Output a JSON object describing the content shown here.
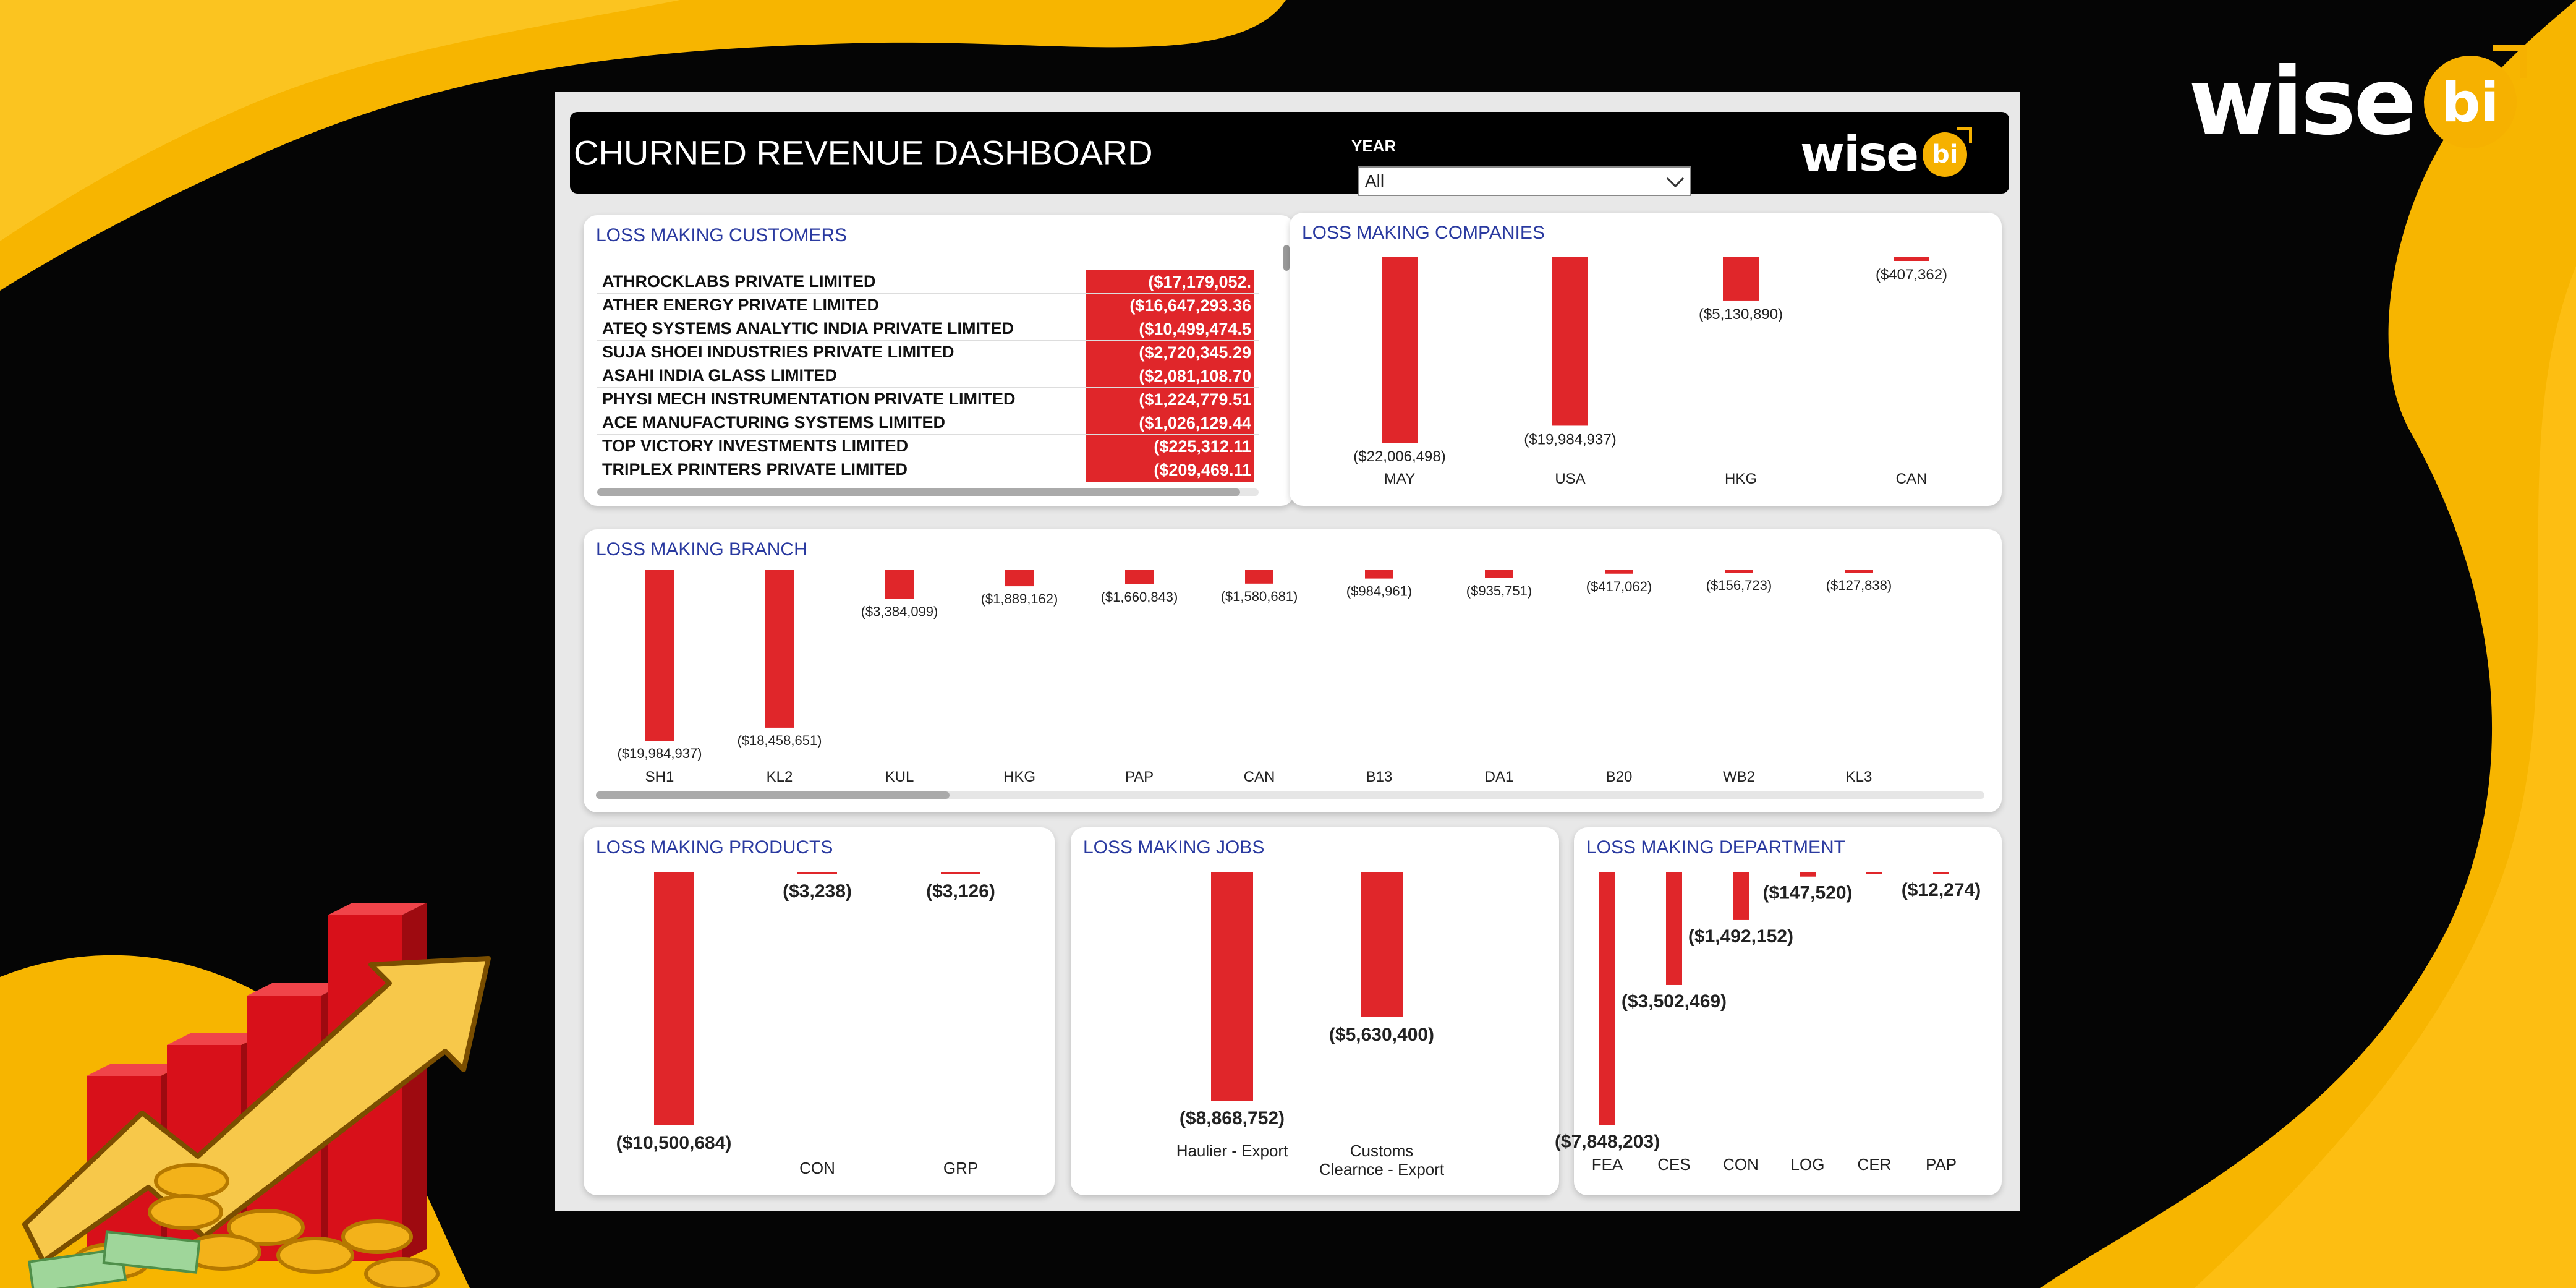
{
  "brand": {
    "word": "wise",
    "badge": "bi"
  },
  "header": {
    "title": "CHURNED REVENUE DASHBOARD",
    "year_label": "YEAR",
    "year_value": "All",
    "logo_word": "wise",
    "logo_badge": "bi"
  },
  "colors": {
    "bar": "#e0262a",
    "title": "#2a3aa0",
    "accent": "#f6b100"
  },
  "customers": {
    "title": "LOSS MAKING CUSTOMERS",
    "rows": [
      {
        "name": "ATHROCKLABS PRIVATE LIMITED",
        "value": "($17,179,052."
      },
      {
        "name": "ATHER ENERGY PRIVATE LIMITED",
        "value": "($16,647,293.36"
      },
      {
        "name": "ATEQ SYSTEMS ANALYTIC INDIA PRIVATE LIMITED",
        "value": "($10,499,474.5"
      },
      {
        "name": "SUJA SHOEI INDUSTRIES PRIVATE LIMITED",
        "value": "($2,720,345.29"
      },
      {
        "name": "ASAHI INDIA GLASS LIMITED",
        "value": "($2,081,108.70"
      },
      {
        "name": "PHYSI MECH INSTRUMENTATION PRIVATE LIMITED",
        "value": "($1,224,779.51"
      },
      {
        "name": "ACE MANUFACTURING SYSTEMS LIMITED",
        "value": "($1,026,129.44"
      },
      {
        "name": "TOP VICTORY INVESTMENTS LIMITED",
        "value": "($225,312.11"
      },
      {
        "name": "TRIPLEX PRINTERS PRIVATE LIMITED",
        "value": "($209,469.11"
      }
    ]
  },
  "chart_data": [
    {
      "id": "companies",
      "type": "bar",
      "title": "LOSS MAKING COMPANIES",
      "categories": [
        "MAY",
        "USA",
        "HKG",
        "CAN"
      ],
      "values": [
        -22006498,
        -19984937,
        -5130890,
        -407362
      ],
      "labels": [
        "($22,006,498)",
        "($19,984,937)",
        "($5,130,890)",
        "($407,362)"
      ]
    },
    {
      "id": "branch",
      "type": "bar",
      "title": "LOSS MAKING BRANCH",
      "categories": [
        "SH1",
        "KL2",
        "KUL",
        "HKG",
        "PAP",
        "CAN",
        "B13",
        "DA1",
        "B20",
        "WB2",
        "KL3"
      ],
      "values": [
        -19984937,
        -18458651,
        -3384099,
        -1889162,
        -1660843,
        -1580681,
        -984961,
        -935751,
        -417062,
        -156723,
        -127838
      ],
      "labels": [
        "($19,984,937)",
        "($18,458,651)",
        "($3,384,099)",
        "($1,889,162)",
        "($1,660,843)",
        "($1,580,681)",
        "($984,961)",
        "($935,751)",
        "($417,062)",
        "($156,723)",
        "($127,838)"
      ]
    },
    {
      "id": "products",
      "type": "bar",
      "title": "LOSS MAKING PRODUCTS",
      "categories": [
        "",
        "CON",
        "GRP"
      ],
      "values": [
        -10500684,
        -3238,
        -3126
      ],
      "labels": [
        "($10,500,684)",
        "($3,238)",
        "($3,126)"
      ]
    },
    {
      "id": "jobs",
      "type": "bar",
      "title": "LOSS MAKING JOBS",
      "categories": [
        "Haulier - Export",
        "Customs Clearnce - Export"
      ],
      "values": [
        -8868752,
        -5630400
      ],
      "labels": [
        "($8,868,752)",
        "($5,630,400)"
      ]
    },
    {
      "id": "department",
      "type": "bar",
      "title": "LOSS MAKING DEPARTMENT",
      "categories": [
        "FEA",
        "CES",
        "CON",
        "LOG",
        "CER",
        "PAP"
      ],
      "values": [
        -7848203,
        -3502469,
        -1492152,
        -147520,
        -30000,
        -12274
      ],
      "labels": [
        "($7,848,203)",
        "($3,502,469)",
        "($1,492,152)",
        "($147,520)",
        "",
        "($12,274)"
      ]
    }
  ]
}
